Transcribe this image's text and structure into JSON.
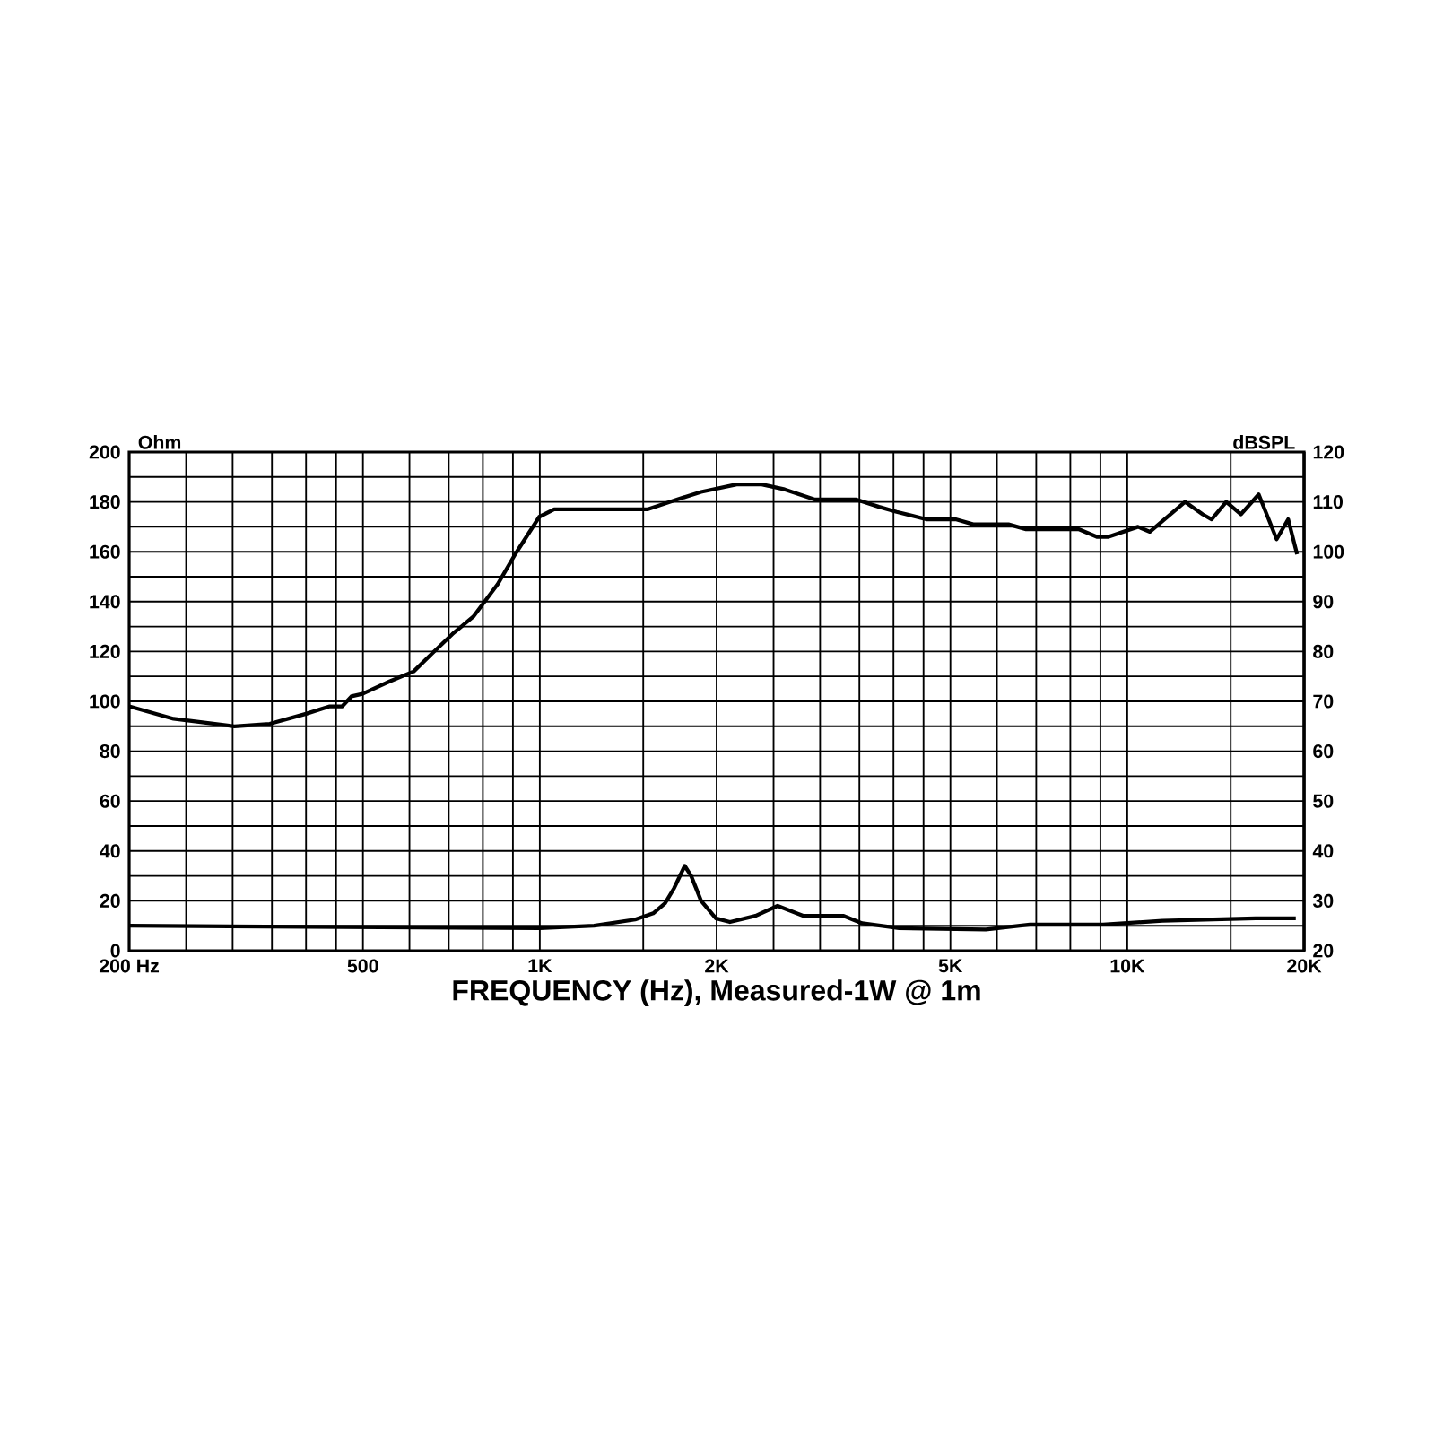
{
  "chart_data": {
    "type": "line",
    "xlabel": "FREQUENCY (Hz), Measured-1W @ 1m",
    "ylabel": "Ohm",
    "y2label": "dBSPL",
    "log": "x",
    "grid": true,
    "marker": "none",
    "line_style": "solid",
    "xlim": [
      200,
      20000
    ],
    "ylim": [
      0,
      200
    ],
    "y2lim": [
      20,
      120
    ],
    "xticks": [
      {
        "value": 200,
        "label": "200 Hz"
      },
      {
        "value": 250,
        "label": null
      },
      {
        "value": 300,
        "label": null
      },
      {
        "value": 350,
        "label": null
      },
      {
        "value": 400,
        "label": null
      },
      {
        "value": 450,
        "label": null
      },
      {
        "value": 500,
        "label": "500"
      },
      {
        "value": 600,
        "label": null
      },
      {
        "value": 700,
        "label": null
      },
      {
        "value": 800,
        "label": null
      },
      {
        "value": 900,
        "label": null
      },
      {
        "value": 1000,
        "label": "1K"
      },
      {
        "value": 1500,
        "label": null
      },
      {
        "value": 2000,
        "label": "2K"
      },
      {
        "value": 2500,
        "label": null
      },
      {
        "value": 3000,
        "label": null
      },
      {
        "value": 3500,
        "label": null
      },
      {
        "value": 4000,
        "label": null
      },
      {
        "value": 4500,
        "label": null
      },
      {
        "value": 5000,
        "label": "5K"
      },
      {
        "value": 6000,
        "label": null
      },
      {
        "value": 7000,
        "label": null
      },
      {
        "value": 8000,
        "label": null
      },
      {
        "value": 9000,
        "label": null
      },
      {
        "value": 10000,
        "label": "10K"
      },
      {
        "value": 15000,
        "label": null
      },
      {
        "value": 20000,
        "label": "20K"
      }
    ],
    "yticks": [
      0,
      {
        "value": 10,
        "label": null
      },
      20,
      {
        "value": 30,
        "label": null
      },
      40,
      {
        "value": 50,
        "label": null
      },
      60,
      {
        "value": 70,
        "label": null
      },
      80,
      {
        "value": 90,
        "label": null
      },
      100,
      {
        "value": 110,
        "label": null
      },
      120,
      {
        "value": 130,
        "label": null
      },
      140,
      {
        "value": 150,
        "label": null
      },
      160,
      {
        "value": 170,
        "label": null
      },
      180,
      {
        "value": 190,
        "label": null
      },
      200
    ],
    "y2ticks": [
      20,
      30,
      40,
      50,
      60,
      70,
      80,
      90,
      100,
      110,
      120
    ],
    "series": [
      {
        "color": "#000000",
        "axis": "y",
        "x": [
          200,
          1000,
          1237,
          1453,
          1560,
          1634,
          1692,
          1765,
          1810,
          1882,
          1994,
          2107,
          2330,
          2540,
          2806,
          3284,
          3538,
          4090,
          5743,
          6830,
          9100,
          11480,
          16540,
          19360
        ],
        "values": [
          10,
          9,
          10,
          12.5,
          15,
          19,
          25,
          34,
          30,
          20,
          13,
          11.5,
          14,
          18,
          14,
          14,
          11,
          9,
          8.5,
          10.5,
          10.5,
          12,
          13,
          13
        ]
      },
      {
        "color": "#000000",
        "axis": "y2",
        "x": [
          200,
          238,
          302,
          347,
          400,
          439,
          461,
          478,
          499,
          555,
          610,
          654,
          710,
          771,
          848,
          908,
          998,
          1058,
          1524,
          1716,
          1882,
          2163,
          2387,
          2611,
          2932,
          3449,
          3780,
          4050,
          4548,
          5104,
          5468,
          6278,
          6727,
          8280,
          8875,
          9290,
          10430,
          10930,
          12540,
          13440,
          13920,
          14740,
          15610,
          16740,
          17340,
          17960,
          18790,
          19460
        ],
        "values": [
          69,
          66.5,
          65,
          65.5,
          67.5,
          69,
          69,
          71,
          71.5,
          74,
          76,
          79.5,
          83.5,
          87,
          93.5,
          99.5,
          107,
          108.5,
          108.5,
          110.5,
          112,
          113.5,
          113.5,
          112.5,
          110.5,
          110.5,
          109,
          108,
          106.5,
          106.5,
          105.5,
          105.5,
          104.5,
          104.5,
          103,
          103,
          105,
          104,
          110,
          107.5,
          106.5,
          110,
          107.5,
          111.5,
          107,
          102.5,
          106.5,
          99.5
        ]
      }
    ]
  }
}
